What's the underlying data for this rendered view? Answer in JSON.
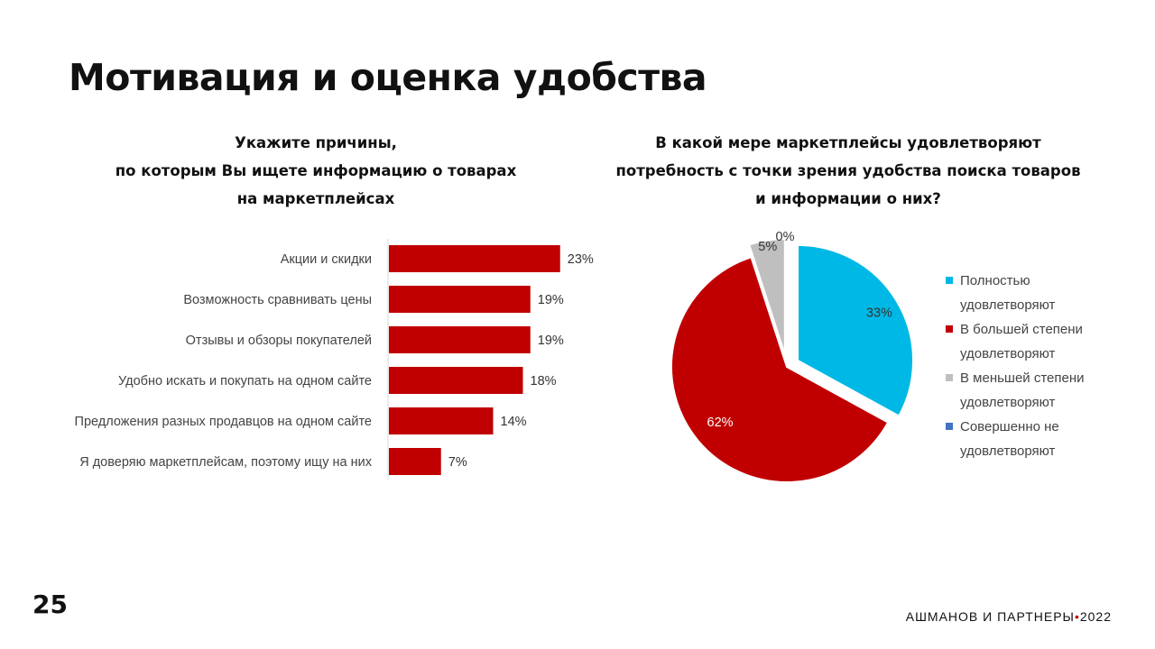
{
  "slide": {
    "title": "Мотивация и оценка удобства",
    "page_number": "25",
    "brand": "АШМАНОВ И ПАРТНЕРЫ",
    "brand_dot": "•",
    "year": "2022"
  },
  "colors": {
    "bar": "#c00000",
    "axis": "#d9d9d9",
    "pie": [
      "#00b8e6",
      "#c00000",
      "#bfbfbf",
      "#4472c4"
    ]
  },
  "chart_data": [
    {
      "type": "bar",
      "orientation": "horizontal",
      "title_lines": [
        "Укажите причины,",
        "по которым Вы ищете информацию о товарах",
        "на маркетплейсах"
      ],
      "categories": [
        "Акции и скидки",
        "Возможность сравнивать цены",
        "Отзывы и обзоры покупателей",
        "Удобно искать и покупать на одном сайте",
        "Предложения разных продавцов на одном сайте",
        "Я доверяю маркетплейсам, поэтому ищу на них"
      ],
      "values": [
        23,
        19,
        19,
        18,
        14,
        7
      ],
      "data_labels": [
        "23%",
        "19%",
        "19%",
        "18%",
        "14%",
        "7%"
      ],
      "unit": "%",
      "grid": false,
      "legend": "none"
    },
    {
      "type": "pie",
      "title_lines": [
        "В какой мере маркетплейсы удовлетворяют",
        "потребность с точки зрения удобства поиска товаров",
        "и информации о них?"
      ],
      "categories": [
        [
          "Полностью",
          "удовлетворяют"
        ],
        [
          "В большей степени",
          "удовлетворяют"
        ],
        [
          "В меньшей степени",
          "удовлетворяют"
        ],
        [
          "Совершенно не",
          "удовлетворяют"
        ]
      ],
      "values": [
        33,
        62,
        5,
        0
      ],
      "data_labels": [
        "33%",
        "62%",
        "5%",
        "0%"
      ],
      "legend": "right"
    }
  ]
}
